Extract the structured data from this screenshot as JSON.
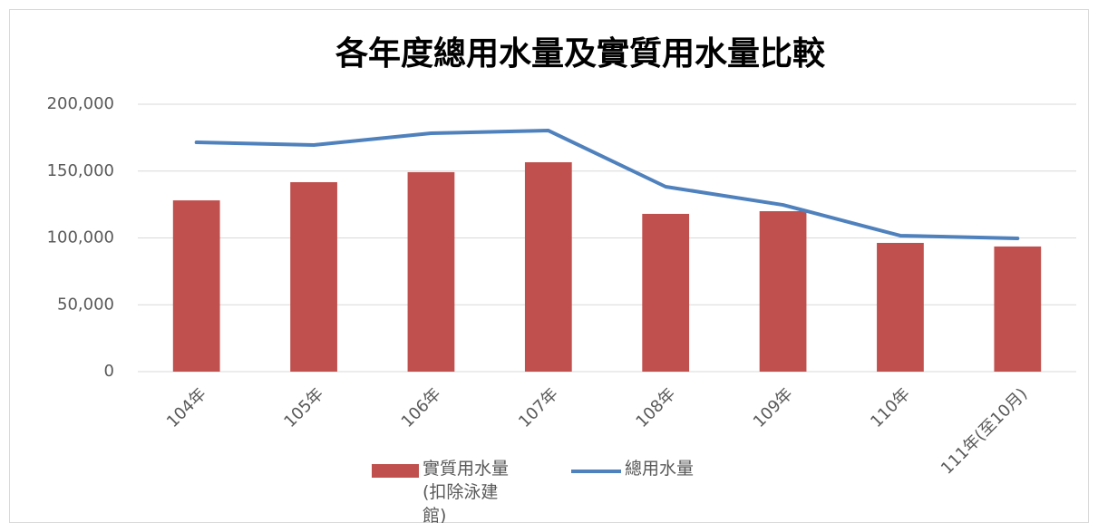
{
  "chart_data": {
    "type": "bar_line",
    "title": "各年度總用水量及實質用水量比較",
    "categories": [
      "104年",
      "105年",
      "106年",
      "107年",
      "108年",
      "109年",
      "110年",
      "111年(至10月)"
    ],
    "series": [
      {
        "name": "實質用水量(扣除泳建館)",
        "type": "bar",
        "color": "#c0504d",
        "values": [
          128100,
          141700,
          149200,
          156600,
          118000,
          120000,
          96300,
          93600
        ]
      },
      {
        "name": "總用水量",
        "type": "line",
        "color": "#4f81bd",
        "values": [
          171500,
          169500,
          178300,
          180300,
          138300,
          124700,
          101700,
          99700
        ]
      }
    ],
    "ylim": [
      0,
      200000
    ],
    "yticks": [
      0,
      {
        "value": 50000,
        "label": "50,000"
      },
      {
        "value": 100000,
        "label": "100,000"
      },
      {
        "value": 150000,
        "label": "150,000"
      },
      {
        "value": 200000,
        "label": "200,000"
      }
    ],
    "grid": true
  }
}
